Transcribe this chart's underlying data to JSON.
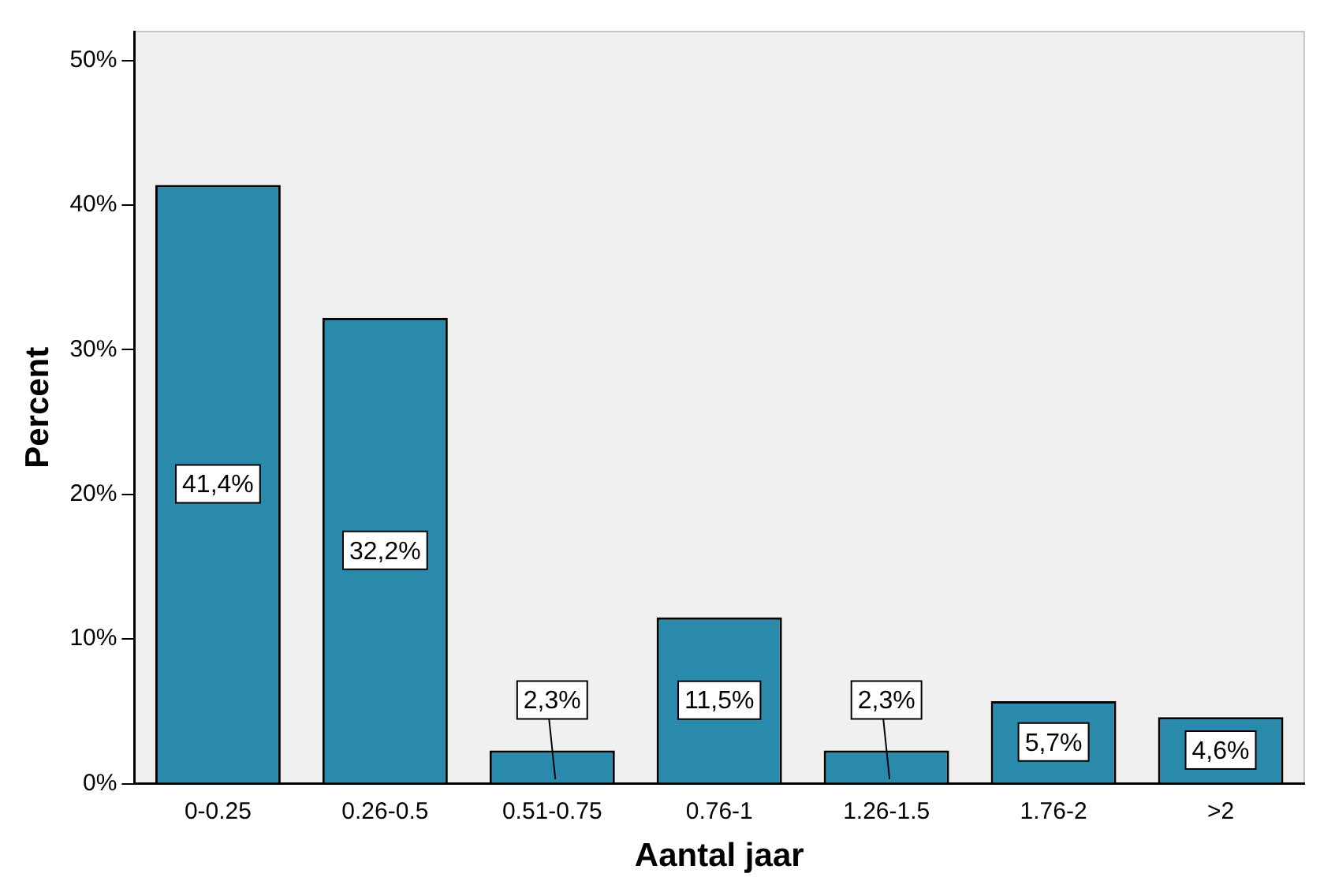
{
  "chart_data": {
    "type": "bar",
    "xlabel": "Aantal jaar",
    "ylabel": "Percent",
    "categories": [
      "0-0.25",
      "0.26-0.5",
      "0.51-0.75",
      "0.76-1",
      "1.26-1.5",
      "1.76-2",
      ">2"
    ],
    "values": [
      41.4,
      32.2,
      2.3,
      11.5,
      2.3,
      5.7,
      4.6
    ],
    "value_labels": [
      "41,4%",
      "32,2%",
      "2,3%",
      "11,5%",
      "2,3%",
      "5,7%",
      "4,6%"
    ],
    "color": "#2a8aab",
    "ylim": [
      0,
      52
    ],
    "yticks": [
      {
        "value": 0,
        "label": "0%"
      },
      {
        "value": 10,
        "label": "10%"
      },
      {
        "value": 20,
        "label": "20%"
      },
      {
        "value": 30,
        "label": "30%"
      },
      {
        "value": 40,
        "label": "40%"
      },
      {
        "value": 50,
        "label": "50%"
      }
    ],
    "grid": false,
    "legend": false
  }
}
